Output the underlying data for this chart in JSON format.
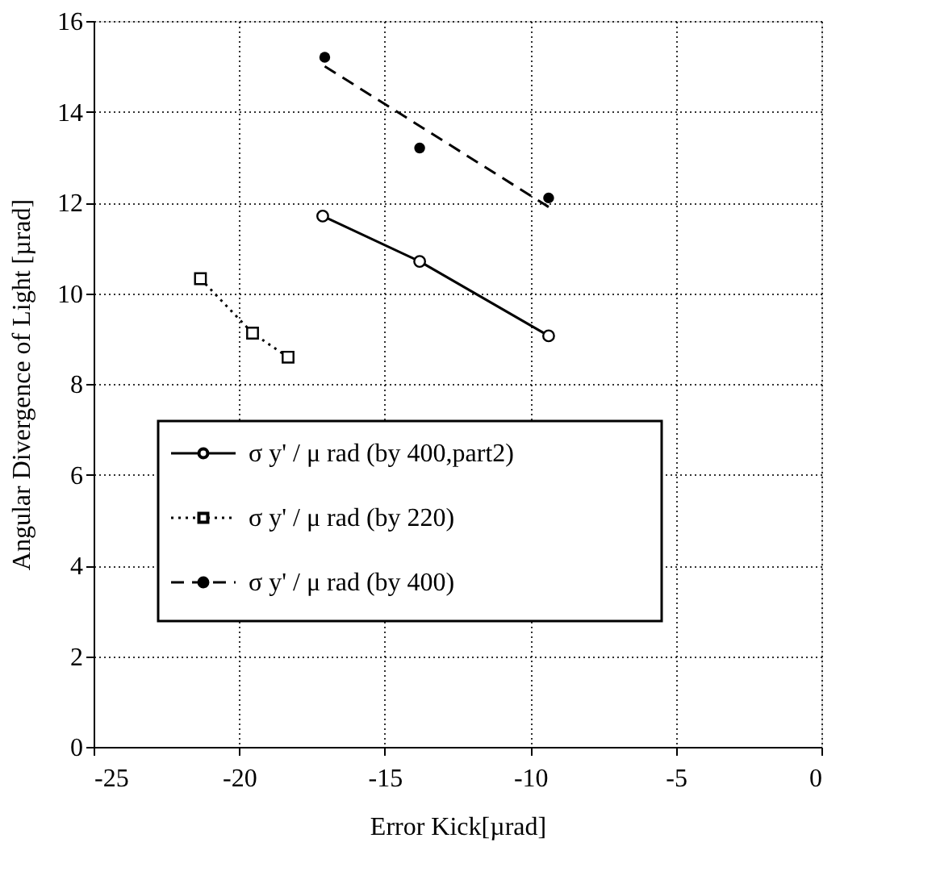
{
  "chart_data": {
    "type": "line",
    "xlabel": "Error Kick[µrad]",
    "ylabel": "Angular Divergence of Light [µrad]",
    "xlim": [
      -25,
      0
    ],
    "xticks": [
      -25,
      -20,
      -15,
      -10,
      -5,
      0
    ],
    "ylim": [
      0,
      16
    ],
    "yticks": [
      0,
      2,
      4,
      6,
      8,
      10,
      12,
      14,
      16
    ],
    "grid": true,
    "legend": "bottom left",
    "series": [
      {
        "name": "σ y' / μ rad (by 400,part2)",
        "color": "#000000",
        "marker": "circle",
        "line_style": "solid",
        "x": [
          -17.13,
          -13.8,
          -9.37
        ],
        "values": [
          11.7,
          10.7,
          9.06
        ]
      },
      {
        "name": "σ y' / μ rad (by 220)",
        "color": "#000000",
        "marker": "square",
        "line_style": "dotted",
        "x": [
          -21.33,
          -19.54,
          -18.32
        ],
        "values": [
          10.32,
          9.12,
          8.59
        ]
      },
      {
        "name": "σ y' / μ rad (by 400)",
        "type": "scatter",
        "color": "#000000",
        "marker": "circle",
        "line_style": "dashed",
        "x": [
          -17.06,
          -13.8,
          -9.37
        ],
        "values": [
          15.2,
          13.2,
          12.1
        ]
      },
      {
        "type": "line",
        "color": "#000000",
        "marker": "none",
        "line_style": "dashed",
        "x": [
          -17.06,
          -9.37
        ],
        "values": [
          15.0,
          11.9
        ]
      }
    ]
  }
}
